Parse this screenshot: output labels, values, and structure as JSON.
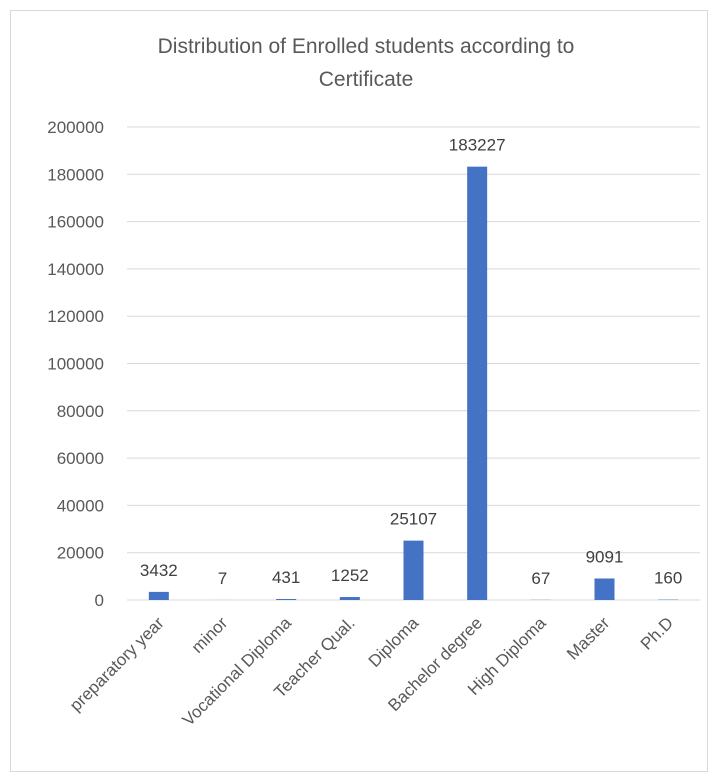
{
  "chart_data": {
    "type": "bar",
    "title_line1": "Distribution of Enrolled students according to",
    "title_line2": "Certificate",
    "categories": [
      "preparatory year",
      "minor",
      "Vocational Diploma",
      "Teacher Qual.",
      "Diploma",
      "Bachelor degree",
      "High Diploma",
      "Master",
      "Ph.D"
    ],
    "values": [
      3432,
      7,
      431,
      1252,
      25107,
      183227,
      67,
      9091,
      160
    ],
    "ylim": [
      0,
      200000
    ],
    "yticks": [
      0,
      20000,
      40000,
      60000,
      80000,
      100000,
      120000,
      140000,
      160000,
      180000,
      200000
    ],
    "xlabel": "",
    "ylabel": "",
    "grid": true,
    "legend": "none",
    "bar_color": "#4472c4",
    "grid_color": "#d9d9d9"
  }
}
